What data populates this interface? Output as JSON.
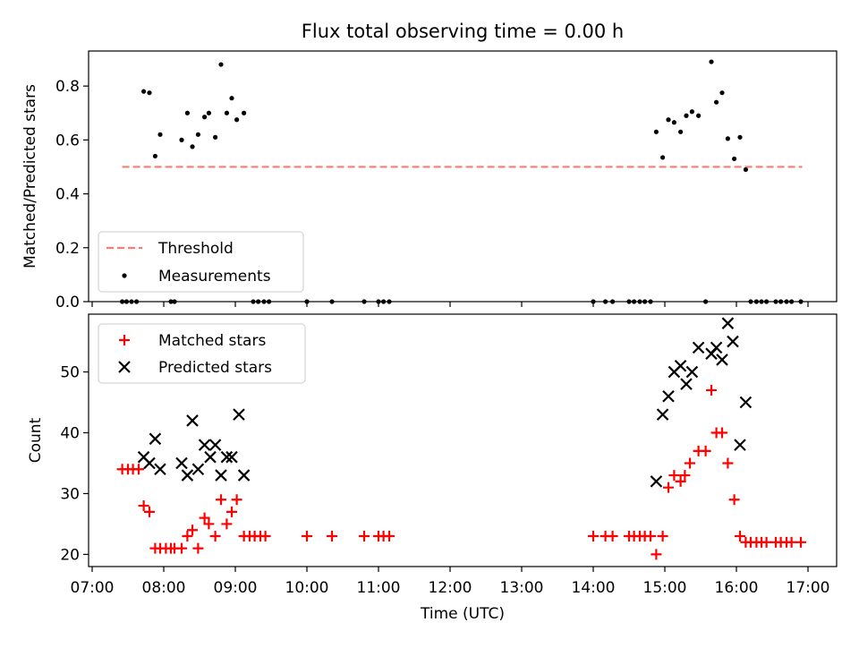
{
  "chart_data": [
    {
      "type": "scatter",
      "title": "Flux total observing time = 0.00 h",
      "xlabel": "",
      "ylabel": "Matched/Predicted stars",
      "xlim": [
        "07:00",
        "17:00"
      ],
      "xlim_hours": [
        6.95,
        17.4
      ],
      "ylim": [
        0,
        0.93
      ],
      "yticks": [
        0.0,
        0.2,
        0.4,
        0.6,
        0.8
      ],
      "ytick_labels": [
        "0.0",
        "0.2",
        "0.4",
        "0.6",
        "0.8"
      ],
      "grid": false,
      "legend_position": "lower-left",
      "threshold": {
        "name": "Threshold",
        "value": 0.5,
        "x_range": [
          7.42,
          16.92
        ],
        "color": "#f87c74"
      },
      "series": [
        {
          "name": "Measurements",
          "color": "#000000",
          "x": [
            7.42,
            7.48,
            7.55,
            7.62,
            7.72,
            7.8,
            7.88,
            7.95,
            8.1,
            8.15,
            8.25,
            8.33,
            8.4,
            8.48,
            8.57,
            8.63,
            8.72,
            8.8,
            8.88,
            8.95,
            9.02,
            9.12,
            9.25,
            9.32,
            9.4,
            9.47,
            10.0,
            10.35,
            10.8,
            11.0,
            11.07,
            11.15,
            14.0,
            14.17,
            14.27,
            14.5,
            14.57,
            14.65,
            14.72,
            14.8,
            14.88,
            14.97,
            15.05,
            15.13,
            15.22,
            15.3,
            15.38,
            15.47,
            15.57,
            15.65,
            15.72,
            15.8,
            15.88,
            15.97,
            16.05,
            16.13,
            16.2,
            16.28,
            16.35,
            16.42,
            16.55,
            16.62,
            16.7,
            16.77,
            16.9
          ],
          "y": [
            0,
            0,
            0,
            0,
            0.78,
            0.775,
            0.54,
            0.62,
            0,
            0,
            0.6,
            0.7,
            0.575,
            0.62,
            0.685,
            0.7,
            0.61,
            0.88,
            0.7,
            0.755,
            0.675,
            0.7,
            0,
            0,
            0,
            0,
            0,
            0,
            0,
            0,
            0,
            0,
            0,
            0,
            0,
            0,
            0,
            0,
            0,
            0,
            0.63,
            0.535,
            0.675,
            0.665,
            0.63,
            0.69,
            0.705,
            0.69,
            0,
            0.89,
            0.74,
            0.775,
            0.605,
            0.53,
            0.61,
            0.49,
            0,
            0,
            0,
            0,
            0,
            0,
            0,
            0,
            0
          ]
        }
      ]
    },
    {
      "type": "scatter",
      "title": "",
      "xlabel": "Time (UTC)",
      "ylabel": "Count",
      "xlim": [
        "07:00",
        "17:00"
      ],
      "xlim_hours": [
        6.95,
        17.4
      ],
      "ylim": [
        18,
        59.5
      ],
      "yticks": [
        20,
        30,
        40,
        50
      ],
      "ytick_labels": [
        "20",
        "30",
        "40",
        "50"
      ],
      "xticks_hours": [
        7,
        8,
        9,
        10,
        11,
        12,
        13,
        14,
        15,
        16,
        17
      ],
      "xtick_labels": [
        "07:00",
        "08:00",
        "09:00",
        "10:00",
        "11:00",
        "12:00",
        "13:00",
        "14:00",
        "15:00",
        "16:00",
        "17:00"
      ],
      "grid": false,
      "legend_position": "upper-left",
      "series": [
        {
          "name": "Matched stars",
          "marker": "plus",
          "color": "#ff0000",
          "x": [
            7.42,
            7.5,
            7.57,
            7.65,
            7.72,
            7.8,
            7.88,
            7.95,
            8.03,
            8.1,
            8.15,
            8.25,
            8.33,
            8.4,
            8.48,
            8.57,
            8.63,
            8.72,
            8.8,
            8.88,
            8.95,
            9.02,
            9.12,
            9.2,
            9.27,
            9.35,
            9.42,
            10.0,
            10.35,
            10.8,
            11.0,
            11.07,
            11.15,
            14.0,
            14.17,
            14.27,
            14.5,
            14.57,
            14.65,
            14.72,
            14.8,
            14.88,
            14.97,
            15.05,
            15.13,
            15.22,
            15.28,
            15.35,
            15.47,
            15.57,
            15.65,
            15.72,
            15.8,
            15.88,
            15.97,
            16.05,
            16.13,
            16.2,
            16.28,
            16.35,
            16.42,
            16.55,
            16.62,
            16.7,
            16.77,
            16.9
          ],
          "y": [
            34,
            34,
            34,
            34,
            28,
            27,
            21,
            21,
            21,
            21,
            21,
            21,
            23,
            24,
            21,
            26,
            25,
            23,
            29,
            25,
            27,
            29,
            23,
            23,
            23,
            23,
            23,
            23,
            23,
            23,
            23,
            23,
            23,
            23,
            23,
            23,
            23,
            23,
            23,
            23,
            23,
            20,
            23,
            31,
            33,
            32,
            33,
            35,
            37,
            37,
            47,
            40,
            40,
            35,
            29,
            23,
            22,
            22,
            22,
            22,
            22,
            22,
            22,
            22,
            22,
            22
          ]
        },
        {
          "name": "Predicted stars",
          "marker": "x",
          "color": "#000000",
          "x": [
            7.72,
            7.8,
            7.88,
            7.95,
            8.25,
            8.33,
            8.4,
            8.48,
            8.57,
            8.65,
            8.72,
            8.8,
            8.88,
            8.95,
            9.05,
            9.12,
            14.88,
            14.97,
            15.05,
            15.13,
            15.22,
            15.3,
            15.38,
            15.47,
            15.65,
            15.72,
            15.8,
            15.88,
            15.95,
            16.05,
            16.13
          ],
          "y": [
            36,
            35,
            39,
            34,
            35,
            33,
            42,
            34,
            38,
            36,
            38,
            33,
            36,
            36,
            43,
            33,
            32,
            43,
            46,
            50,
            51,
            48,
            50,
            54,
            53,
            54,
            52,
            58,
            55,
            38,
            45
          ]
        }
      ]
    }
  ]
}
